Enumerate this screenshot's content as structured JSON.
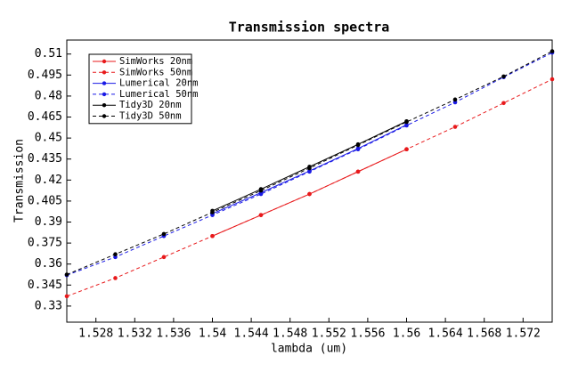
{
  "chart_data": {
    "type": "line",
    "title": "Transmission spectra",
    "x_label": "lambda (um)",
    "y_label": "Transmission",
    "x": [
      1.525,
      1.53,
      1.535,
      1.54,
      1.545,
      1.55,
      1.555,
      1.56,
      1.565,
      1.57,
      1.575
    ],
    "xlim": [
      1.525,
      1.575
    ],
    "xticks": [
      1.528,
      1.532,
      1.536,
      1.54,
      1.544,
      1.548,
      1.552,
      1.556,
      1.56,
      1.564,
      1.568,
      1.572
    ],
    "ylim": [
      0.3185,
      0.52
    ],
    "yticks": [
      0.33,
      0.345,
      0.36,
      0.375,
      0.39,
      0.405,
      0.42,
      0.435,
      0.45,
      0.465,
      0.48,
      0.495,
      0.51
    ],
    "legend": "upper left",
    "series": [
      {
        "name": "SimWorks 20nm",
        "color": "#e8191b",
        "dashed": false,
        "values": [
          null,
          null,
          null,
          0.38,
          0.395,
          0.41,
          0.426,
          0.442,
          null,
          null,
          null
        ]
      },
      {
        "name": "SimWorks 50nm",
        "color": "#e8191b",
        "dashed": true,
        "values": [
          0.337,
          0.35,
          0.365,
          0.38,
          0.395,
          0.41,
          0.426,
          0.442,
          0.458,
          0.475,
          0.492
        ]
      },
      {
        "name": "Lumerical 20nm",
        "color": "#1a1ae6",
        "dashed": false,
        "values": [
          null,
          null,
          null,
          0.396,
          0.411,
          0.4265,
          0.4425,
          0.4595,
          null,
          null,
          null
        ]
      },
      {
        "name": "Lumerical 50nm",
        "color": "#1a1ae6",
        "dashed": true,
        "values": [
          0.352,
          0.365,
          0.38,
          0.395,
          0.41,
          0.426,
          0.442,
          0.459,
          0.4755,
          0.4935,
          0.511
        ]
      },
      {
        "name": "Tidy3D 20nm",
        "color": "#000000",
        "dashed": false,
        "values": [
          null,
          null,
          null,
          0.398,
          0.4135,
          0.4295,
          0.4455,
          0.462,
          null,
          null,
          null
        ]
      },
      {
        "name": "Tidy3D 50nm",
        "color": "#000000",
        "dashed": true,
        "values": [
          0.3525,
          0.367,
          0.3815,
          0.397,
          0.4125,
          0.4285,
          0.445,
          0.4615,
          0.4775,
          0.494,
          0.512
        ]
      }
    ]
  }
}
